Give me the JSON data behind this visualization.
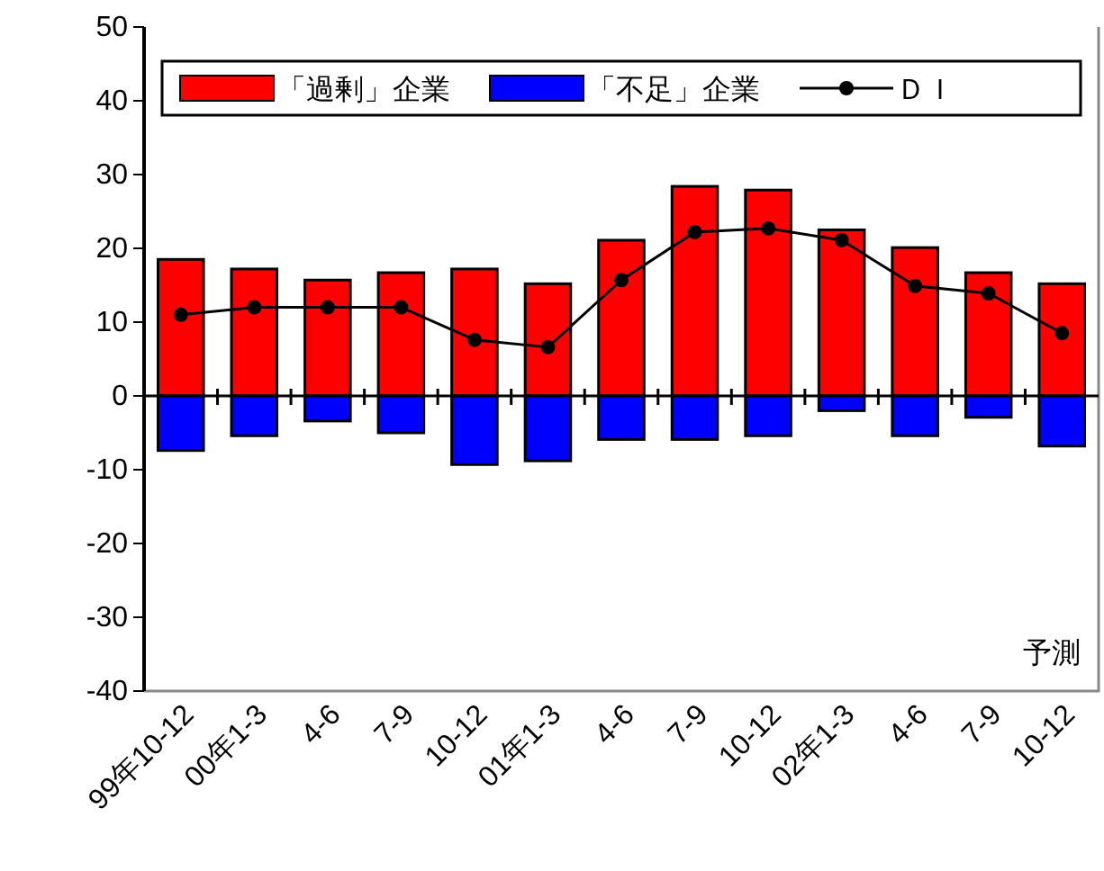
{
  "chart_data": {
    "type": "bar",
    "stacked": true,
    "categories": [
      "99年10-12",
      "00年1-3",
      "4-6",
      "7-9",
      "10-12",
      "01年1-3",
      "4-6",
      "7-9",
      "10-12",
      "02年1-3",
      "4-6",
      "7-9",
      "10-12"
    ],
    "series": [
      {
        "name": "「過剰」企業",
        "color": "#ff0000",
        "values": [
          18.5,
          17.2,
          15.7,
          16.7,
          17.2,
          15.2,
          21.1,
          28.4,
          27.9,
          22.5,
          20.1,
          16.7,
          15.2
        ]
      },
      {
        "name": "「不足」企業",
        "color": "#0000ff",
        "values": [
          -7.4,
          -5.4,
          -3.4,
          -5.0,
          -9.3,
          -8.8,
          -5.9,
          -5.9,
          -5.4,
          -2.0,
          -5.4,
          -2.9,
          -6.8
        ]
      },
      {
        "name": "ＤＩ",
        "type": "line",
        "color": "#000000",
        "marker": "circle",
        "values": [
          11.0,
          12.0,
          12.0,
          12.0,
          7.6,
          6.6,
          15.7,
          22.2,
          22.7,
          21.1,
          14.9,
          13.9,
          8.5
        ]
      }
    ],
    "ylim": [
      -40,
      50
    ],
    "yticks": [
      -40,
      -30,
      -20,
      -10,
      0,
      10,
      20,
      30,
      40,
      50
    ],
    "legend": "top",
    "annotations": [
      "予測"
    ]
  }
}
